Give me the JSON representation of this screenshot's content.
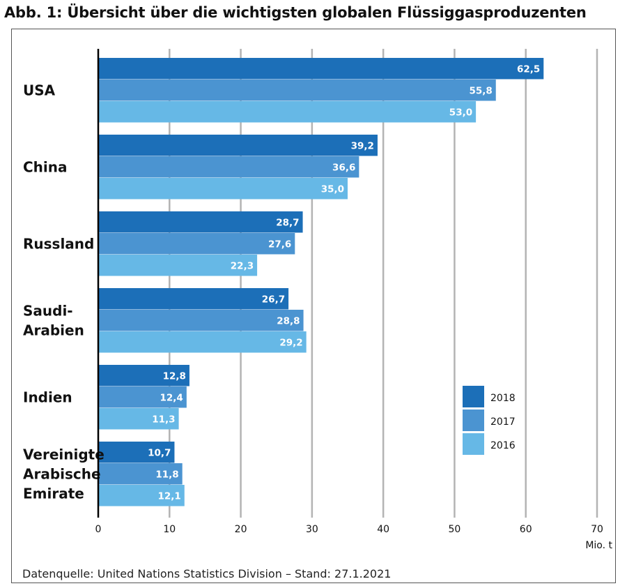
{
  "title": "Abb. 1: Übersicht über die wichtigsten globalen Flüssiggasproduzenten",
  "source": "Datenquelle: United Nations Statistics Division – Stand: 27.1.2021",
  "colors": {
    "2018": "#1c6fb8",
    "2017": "#4b94d1",
    "2016": "#66b8e6",
    "grid": "#b3b3b3",
    "axis": "#000000"
  },
  "chart_data": {
    "type": "bar",
    "orientation": "horizontal",
    "categories": [
      [
        "USA"
      ],
      [
        "China"
      ],
      [
        "Russland"
      ],
      [
        "Saudi-",
        "Arabien"
      ],
      [
        "Indien"
      ],
      [
        "Vereinigte",
        "Arabische",
        "Emirate"
      ]
    ],
    "series": [
      {
        "name": "2018",
        "values": [
          62.5,
          39.2,
          28.7,
          26.7,
          12.8,
          10.7
        ],
        "labels": [
          "62,5",
          "39,2",
          "28,7",
          "26,7",
          "12,8",
          "10,7"
        ]
      },
      {
        "name": "2017",
        "values": [
          55.8,
          36.6,
          27.6,
          28.8,
          12.4,
          11.8
        ],
        "labels": [
          "55,8",
          "36,6",
          "27,6",
          "28,8",
          "12,4",
          "11,8"
        ]
      },
      {
        "name": "2016",
        "values": [
          53.0,
          35.0,
          22.3,
          29.2,
          11.3,
          12.1
        ],
        "labels": [
          "53,0",
          "35,0",
          "22,3",
          "29,2",
          "11,3",
          "12,1"
        ]
      }
    ],
    "xlim": [
      0,
      70
    ],
    "xticks": [
      0,
      10,
      20,
      30,
      40,
      50,
      60,
      70
    ],
    "xunit": "Mio. t",
    "grid": "vertical",
    "legend_position": "bottom-right"
  }
}
